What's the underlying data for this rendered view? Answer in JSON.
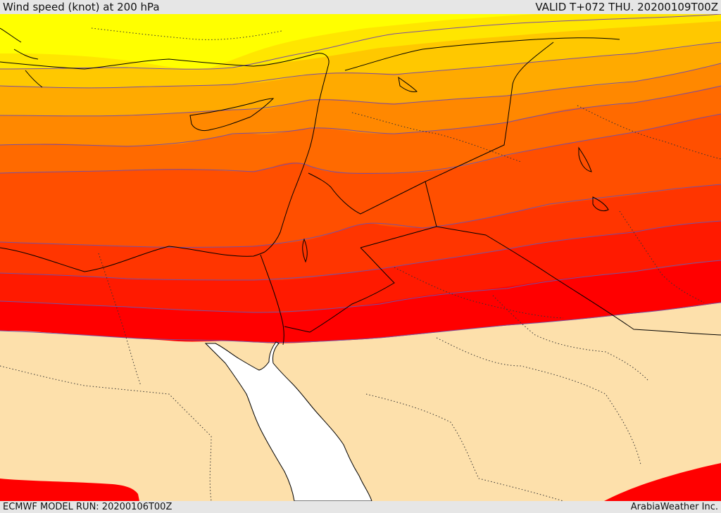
{
  "header": {
    "title": "Wind speed (knot) at 200 hPa",
    "valid_time": "VALID T+072 THU. 20200109T00Z"
  },
  "footer": {
    "model_run": "ECMWF MODEL RUN: 20200106T00Z",
    "credit": "ArabiaWeather Inc."
  },
  "colors": {
    "below_threshold": "#fde0ab",
    "sea": "#ffffff",
    "speed_scale": [
      "#ffff00",
      "#ffe600",
      "#ffc800",
      "#ffaa00",
      "#ff8800",
      "#ff6a00",
      "#ff4f00",
      "#ff3500",
      "#ff1a00",
      "#ff0000"
    ],
    "contour_line": "#7a4fa0",
    "coastline": "#000000",
    "border": "#000000"
  }
}
